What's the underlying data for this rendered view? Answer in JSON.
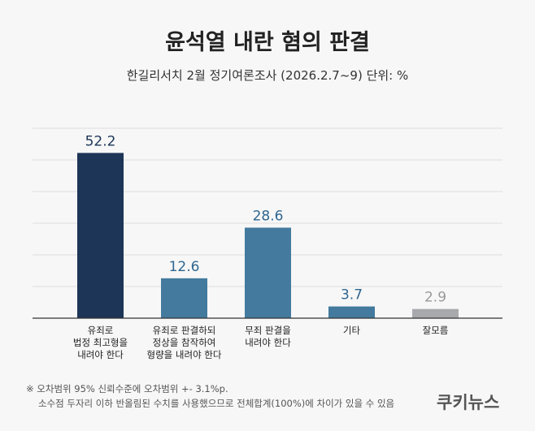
{
  "title": "윤석열 내란 혐의 판결",
  "subtitle": "한길리서치 2월 정기여론조사 (2026.2.7~9) 단위: %",
  "notes": [
    "※ 오차범위 95% 신뢰수준에 오차범위 +- 3.1%p.",
    "소수점 두자리 이하 반올림된 수치를 사용했으므로 전체합계(100%)에 차이가 있을 수 있음"
  ],
  "logo": "쿠키뉴스",
  "chart_data": {
    "type": "bar",
    "categories": [
      [
        "유죄로",
        "법정 최고형을",
        "내려야 한다"
      ],
      [
        "유죄로 판결하되",
        "정상을 참작하여",
        "형량을 내려야 한다"
      ],
      [
        "무죄 판결을",
        "내려야 한다"
      ],
      [
        "기타"
      ],
      [
        "잘모름"
      ]
    ],
    "values": [
      52.2,
      12.6,
      28.6,
      3.7,
      2.9
    ],
    "labels": [
      "52.2",
      "12.6",
      "28.6",
      "3.7",
      "2.9"
    ],
    "colors": [
      "#1d3557",
      "#437a9e",
      "#437a9e",
      "#437a9e",
      "#a7a9ac"
    ],
    "label_colors": [
      "#1d3557",
      "#2f6690",
      "#2f6690",
      "#2f6690",
      "#999999"
    ],
    "ylim": [
      0,
      60
    ],
    "grid": true
  }
}
